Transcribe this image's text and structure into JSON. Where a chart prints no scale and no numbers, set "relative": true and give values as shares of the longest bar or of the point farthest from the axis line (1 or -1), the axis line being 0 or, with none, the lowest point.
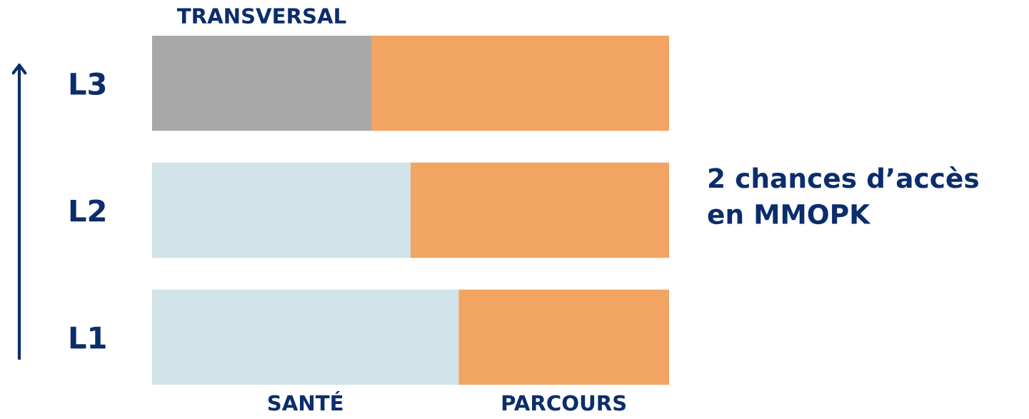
{
  "chart_data": {
    "type": "bar",
    "orientation": "horizontal",
    "stacked": true,
    "relative": true,
    "categories": [
      "L3",
      "L2",
      "L1"
    ],
    "series": [
      {
        "name": "SANTÉ",
        "color": "#d0e3e8",
        "values": [
          null,
          0.5,
          0.593
        ]
      },
      {
        "name": "TRANSVERSAL",
        "color": "#a8a8a8",
        "values": [
          0.424,
          null,
          null
        ]
      },
      {
        "name": "PARCOURS",
        "color": "#f2a462",
        "values": [
          0.576,
          0.5,
          0.407
        ]
      }
    ],
    "annotations": [
      "2 chances d’accès\nen MMOPK"
    ]
  }
}
